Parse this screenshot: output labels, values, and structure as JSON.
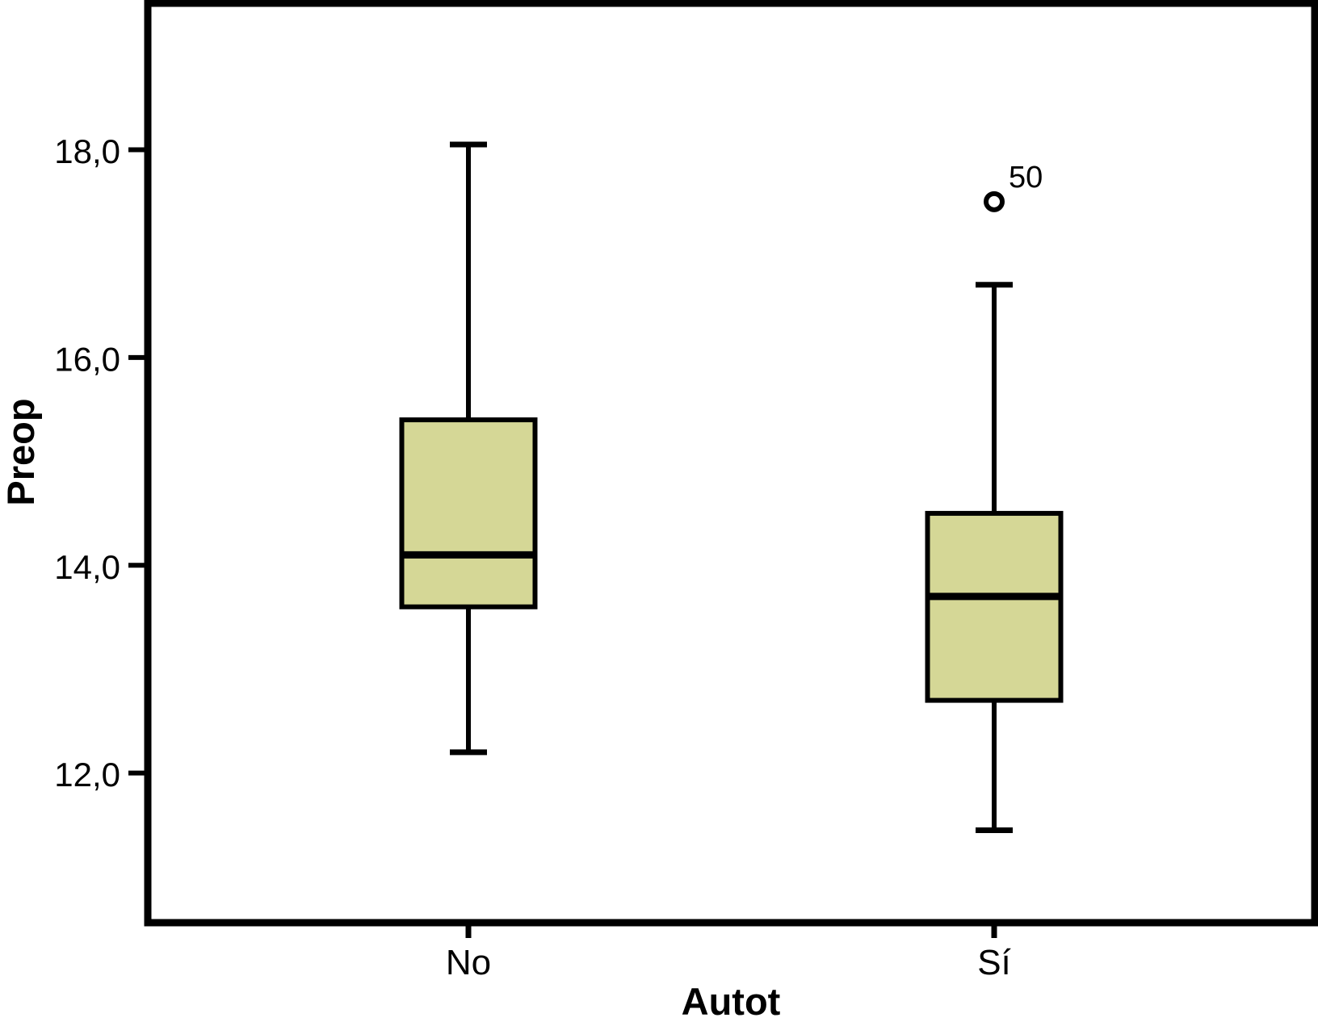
{
  "chart_data": {
    "type": "boxplot",
    "title": "",
    "xlabel": "Autot",
    "ylabel": "Preop",
    "categories": [
      "No",
      "Sí"
    ],
    "ylim": [
      10.56,
      19.41
    ],
    "yticks": {
      "values": [
        12,
        14,
        16,
        18
      ],
      "labels": [
        "12,0",
        "14,0",
        "16,0",
        "18,0"
      ]
    },
    "grid": false,
    "legend": null,
    "box_fill_color": "#d5d796",
    "line_color": "#000000",
    "groups": [
      {
        "category": "No",
        "whisker_low": 12.2,
        "q1": 13.6,
        "median": 14.1,
        "q3": 15.4,
        "whisker_high": 18.05,
        "outliers": []
      },
      {
        "category": "Sí",
        "whisker_low": 11.45,
        "q1": 12.7,
        "median": 13.7,
        "q3": 14.5,
        "whisker_high": 16.7,
        "outliers": [
          {
            "value": 17.5,
            "label": "50"
          }
        ]
      }
    ]
  }
}
